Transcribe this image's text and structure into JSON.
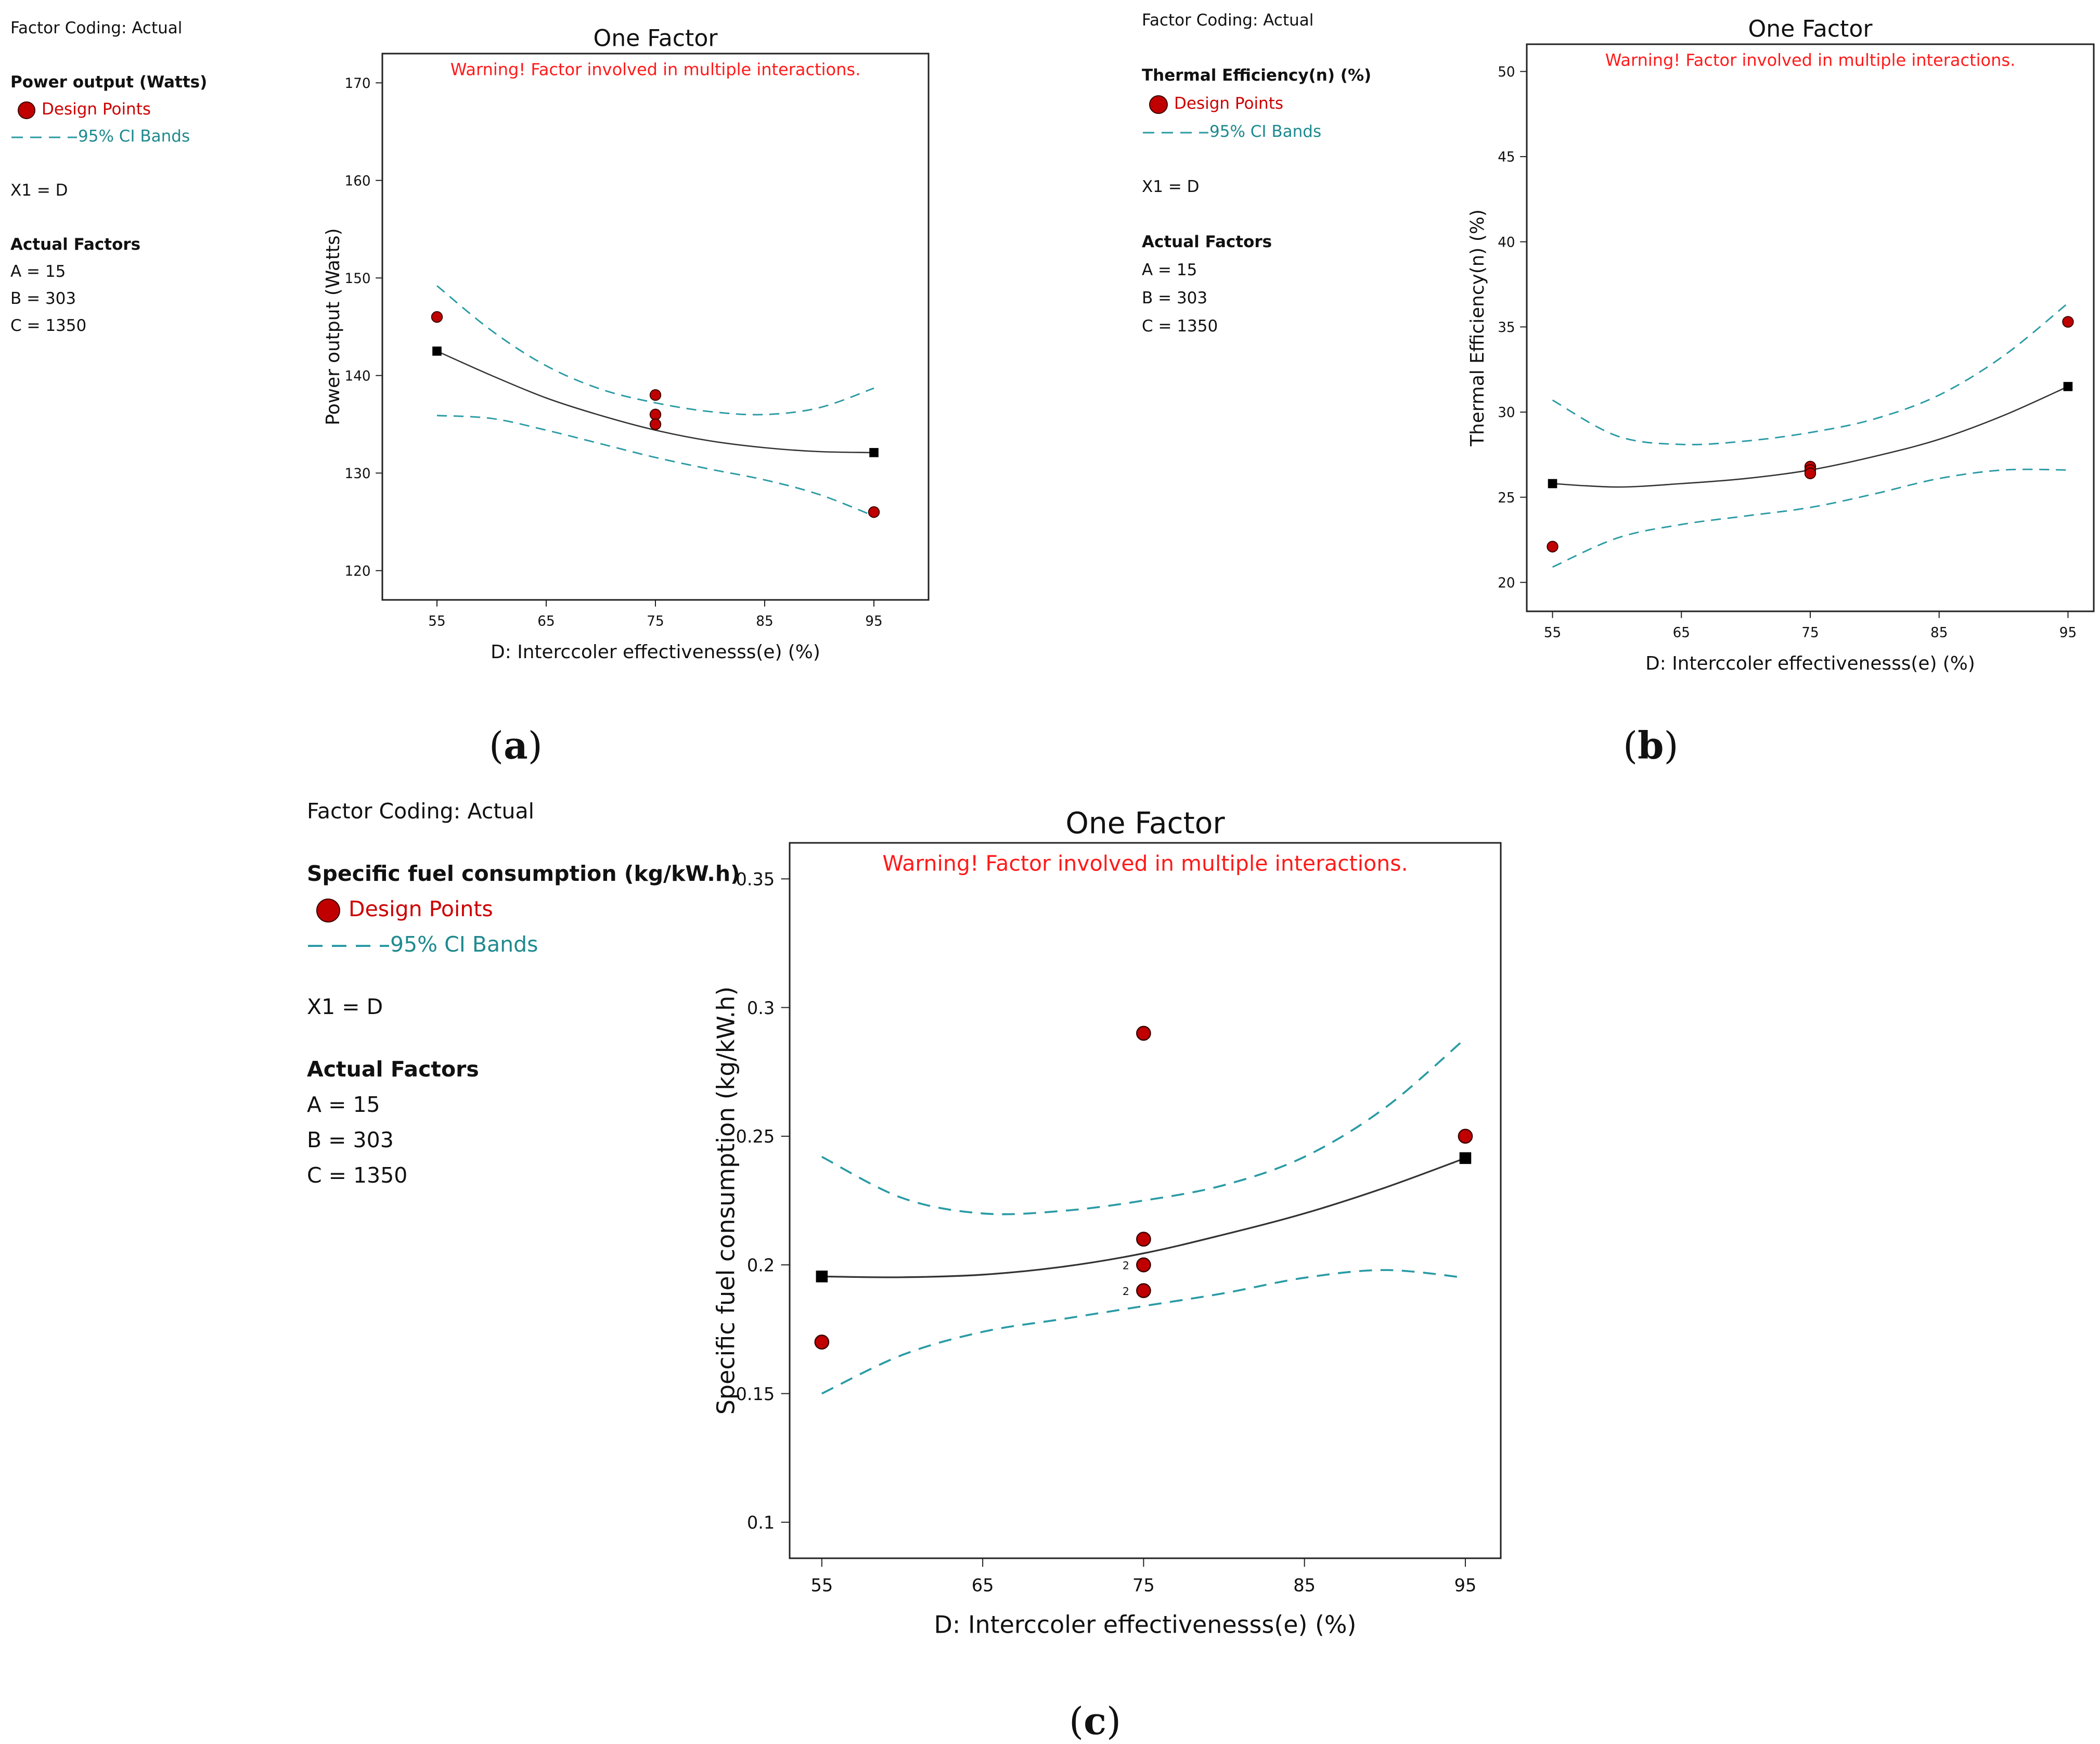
{
  "panels": [
    {
      "label_open": "(",
      "label_letter": "a",
      "label_close": ")",
      "legend": {
        "coding": "Factor Coding: Actual",
        "response": "Power output (Watts)",
        "design_points": "Design Points",
        "ci_bands": "95% CI Bands",
        "x1": "X1 = D",
        "actual_factors_title": "Actual Factors",
        "factors": [
          "A = 15",
          "B = 303",
          "C = 1350"
        ]
      },
      "chart_data": {
        "type": "line",
        "title": "One Factor",
        "warning": "Warning! Factor involved in multiple interactions.",
        "xlabel": "D: Interccoler effectivenesss(e) (%)",
        "ylabel": "Power output (Watts)",
        "xlim": [
          50,
          100
        ],
        "ylim": [
          117,
          173
        ],
        "xticks": [
          55,
          65,
          75,
          85,
          95
        ],
        "xtick_labels": [
          "55",
          "65",
          "75",
          "85",
          "95"
        ],
        "yticks": [
          120,
          130,
          140,
          150,
          160,
          170
        ],
        "ytick_labels": [
          "120",
          "130",
          "140",
          "150",
          "160",
          "170"
        ],
        "fit": {
          "x": [
            55,
            60,
            65,
            70,
            75,
            80,
            85,
            90,
            95
          ],
          "y": [
            142.5,
            140.0,
            137.7,
            135.9,
            134.4,
            133.3,
            132.6,
            132.2,
            132.1
          ]
        },
        "ci_upper": {
          "x": [
            55,
            60,
            65,
            70,
            75,
            80,
            85,
            90,
            95
          ],
          "y": [
            149.2,
            144.6,
            141.0,
            138.6,
            137.2,
            136.3,
            136.0,
            136.7,
            138.7
          ]
        },
        "ci_lower": {
          "x": [
            55,
            60,
            65,
            70,
            75,
            80,
            85,
            90,
            95
          ],
          "y": [
            135.9,
            135.6,
            134.4,
            133.0,
            131.6,
            130.4,
            129.3,
            127.8,
            125.6
          ]
        },
        "design_points": {
          "x": [
            55,
            75,
            75,
            75,
            95
          ],
          "y": [
            146,
            138,
            136,
            135,
            126
          ]
        },
        "fit_endpoints": {
          "x": [
            55,
            95
          ],
          "y": [
            142.5,
            132.1
          ]
        },
        "count_labels": []
      }
    },
    {
      "label_open": "(",
      "label_letter": "b",
      "label_close": ")",
      "legend": {
        "coding": "Factor Coding: Actual",
        "response": "Thermal Efficiency(n) (%)",
        "design_points": "Design Points",
        "ci_bands": "95% CI Bands",
        "x1": "X1 = D",
        "actual_factors_title": "Actual Factors",
        "factors": [
          "A = 15",
          "B = 303",
          "C = 1350"
        ]
      },
      "chart_data": {
        "type": "line",
        "title": "One Factor",
        "warning": "Warning! Factor involved in multiple interactions.",
        "xlabel": "D: Interccoler effectivenesss(e) (%)",
        "ylabel": "Thermal Efficiency(n) (%)",
        "xlim": [
          53,
          97
        ],
        "ylim": [
          18.3,
          51.6
        ],
        "xticks": [
          55,
          65,
          75,
          85,
          95
        ],
        "xtick_labels": [
          "55",
          "65",
          "75",
          "85",
          "95"
        ],
        "yticks": [
          20,
          25,
          30,
          35,
          40,
          45,
          50
        ],
        "ytick_labels": [
          "20",
          "25",
          "30",
          "35",
          "40",
          "45",
          "50"
        ],
        "fit": {
          "x": [
            55,
            60,
            65,
            70,
            75,
            80,
            85,
            90,
            95
          ],
          "y": [
            25.8,
            25.6,
            25.8,
            26.1,
            26.6,
            27.4,
            28.4,
            29.8,
            31.5
          ]
        },
        "ci_upper": {
          "x": [
            55,
            60,
            65,
            70,
            75,
            80,
            85,
            90,
            95
          ],
          "y": [
            30.7,
            28.6,
            28.1,
            28.3,
            28.8,
            29.6,
            31.0,
            33.3,
            36.4
          ]
        },
        "ci_lower": {
          "x": [
            55,
            60,
            65,
            70,
            75,
            80,
            85,
            90,
            95
          ],
          "y": [
            20.9,
            22.6,
            23.4,
            23.9,
            24.4,
            25.2,
            26.1,
            26.6,
            26.6
          ]
        },
        "design_points": {
          "x": [
            55,
            75,
            75,
            75,
            95
          ],
          "y": [
            22.1,
            26.8,
            26.6,
            26.4,
            35.3
          ]
        },
        "fit_endpoints": {
          "x": [
            55,
            95
          ],
          "y": [
            25.8,
            31.5
          ]
        },
        "count_labels": []
      }
    },
    {
      "label_open": "(",
      "label_letter": "c",
      "label_close": ")",
      "legend": {
        "coding": "Factor Coding: Actual",
        "response": "Specific fuel consumption (kg/kW.h)",
        "design_points": "Design Points",
        "ci_bands": "95% CI Bands",
        "x1": "X1 = D",
        "actual_factors_title": "Actual Factors",
        "factors": [
          "A = 15",
          "B = 303",
          "C = 1350"
        ]
      },
      "chart_data": {
        "type": "line",
        "title": "One Factor",
        "warning": "Warning! Factor involved in multiple interactions.",
        "xlabel": "D: Interccoler effectivenesss(e) (%)",
        "ylabel": "Specific fuel consumption (kg/kW.h)",
        "xlim": [
          53,
          97.2
        ],
        "ylim": [
          0.086,
          0.364
        ],
        "xticks": [
          55,
          65,
          75,
          85,
          95
        ],
        "xtick_labels": [
          "55",
          "65",
          "75",
          "85",
          "95"
        ],
        "yticks": [
          0.1,
          0.15,
          0.2,
          0.25,
          0.3,
          0.35
        ],
        "ytick_labels": [
          "0.1",
          "0.15",
          "0.2",
          "0.25",
          "0.3",
          "0.35"
        ],
        "fit": {
          "x": [
            55,
            60,
            65,
            70,
            75,
            80,
            85,
            90,
            95
          ],
          "y": [
            0.1955,
            0.1952,
            0.1962,
            0.1993,
            0.2045,
            0.2118,
            0.22,
            0.23,
            0.2415
          ]
        },
        "ci_upper": {
          "x": [
            55,
            60,
            65,
            70,
            75,
            80,
            85,
            90,
            95
          ],
          "y": [
            0.242,
            0.226,
            0.22,
            0.221,
            0.225,
            0.231,
            0.242,
            0.261,
            0.288
          ]
        },
        "ci_lower": {
          "x": [
            55,
            60,
            65,
            70,
            75,
            80,
            85,
            90,
            95
          ],
          "y": [
            0.15,
            0.165,
            0.174,
            0.179,
            0.184,
            0.189,
            0.195,
            0.198,
            0.195
          ]
        },
        "design_points": {
          "x": [
            55,
            75,
            75,
            75,
            75,
            95
          ],
          "y": [
            0.17,
            0.29,
            0.21,
            0.2,
            0.19,
            0.25
          ]
        },
        "fit_endpoints": {
          "x": [
            55,
            95
          ],
          "y": [
            0.1955,
            0.2415
          ]
        },
        "count_labels": [
          {
            "x": 75,
            "y": 0.2,
            "text": "2"
          },
          {
            "x": 75,
            "y": 0.19,
            "text": "2"
          }
        ]
      }
    }
  ],
  "colors": {
    "design_point": "#c00000",
    "ci_band": "#2a9ba5",
    "fit": "#333333",
    "warning": "#ff1a1a",
    "frame": "#222222"
  }
}
